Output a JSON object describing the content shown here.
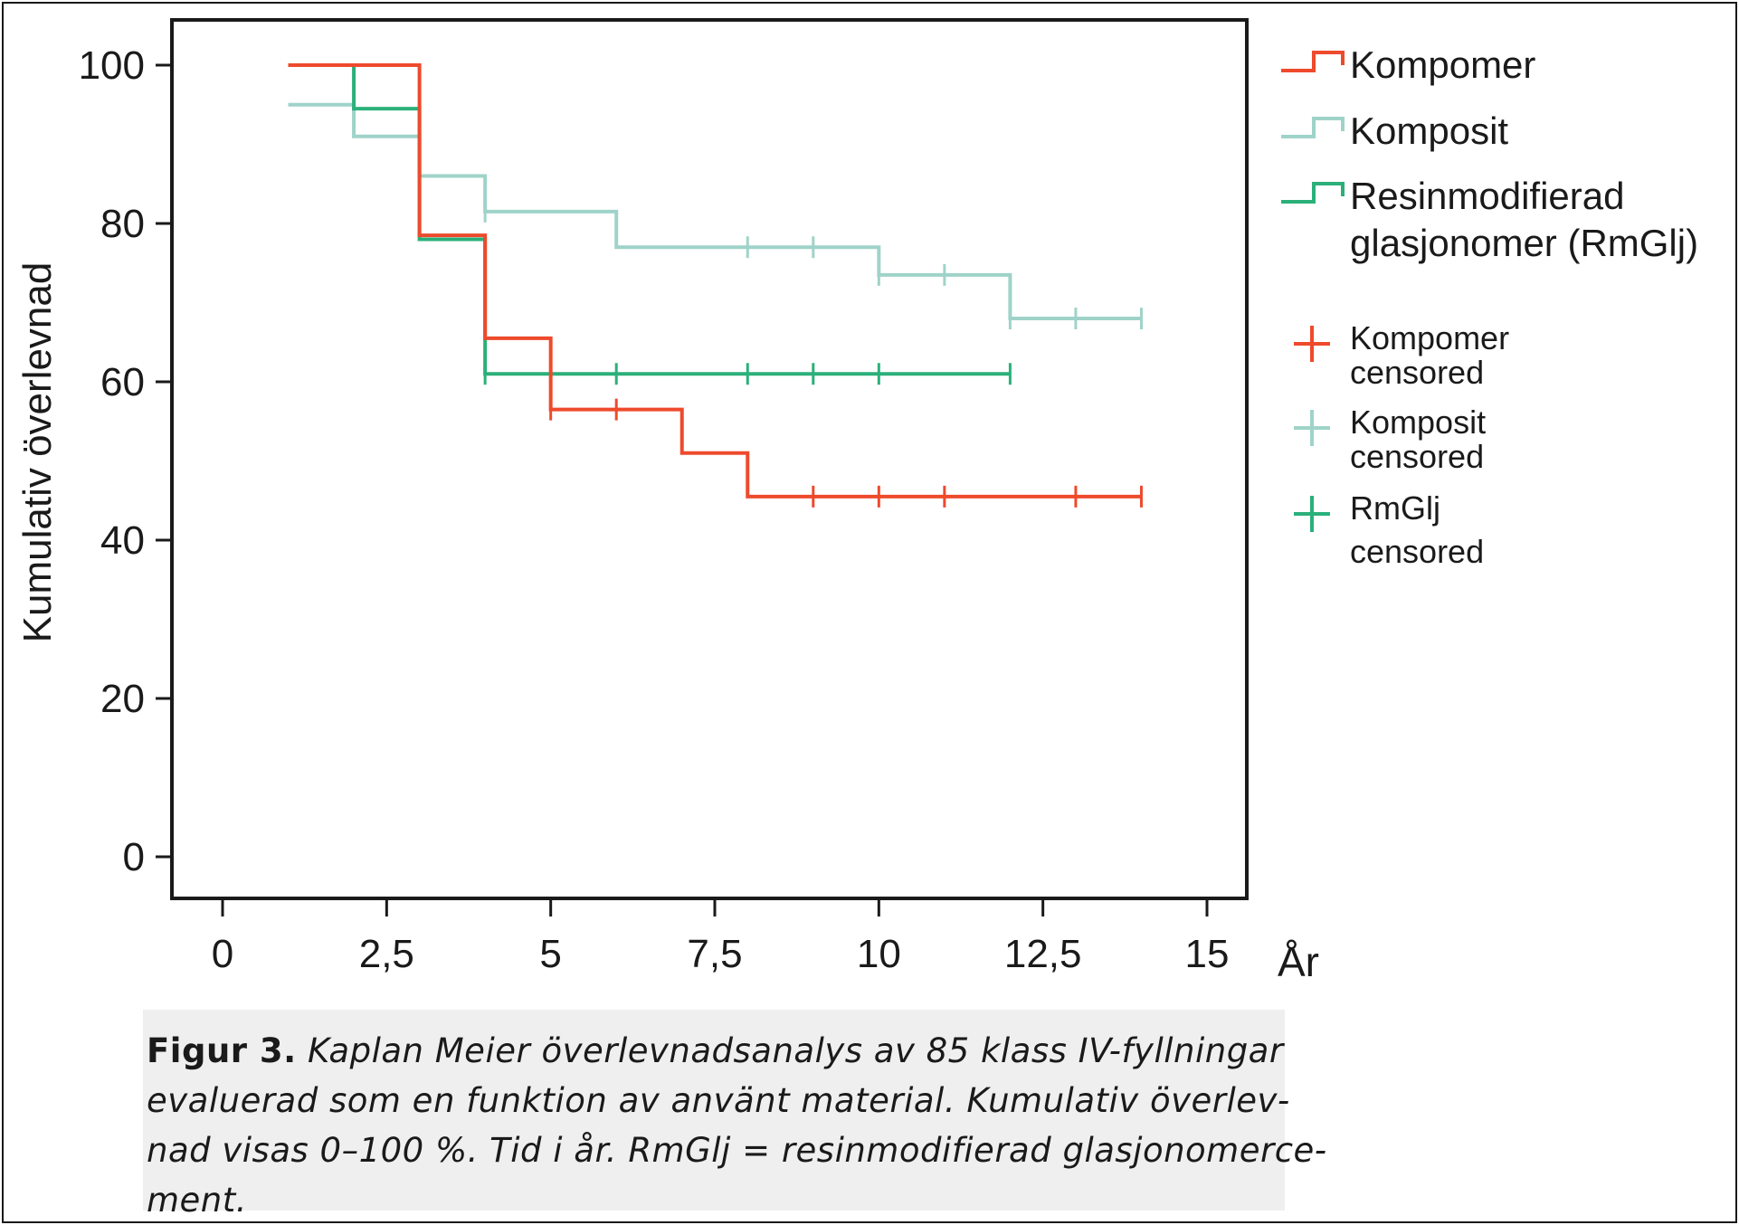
{
  "chart_data": {
    "type": "line",
    "step": true,
    "ylabel": "Kumulativ överlevnad",
    "xunit": "År",
    "xlim": [
      0,
      15
    ],
    "ylim": [
      0,
      100
    ],
    "xticks": [
      0,
      2.5,
      5,
      7.5,
      10,
      12.5,
      15
    ],
    "xtick_labels": [
      "0",
      "2,5",
      "5",
      "7,5",
      "10",
      "12,5",
      "15"
    ],
    "yticks": [
      0,
      20,
      40,
      60,
      80,
      100
    ],
    "ytick_labels": [
      "0",
      "20",
      "40",
      "60",
      "80",
      "100"
    ],
    "grid": false,
    "legend_position": "right",
    "series": [
      {
        "name": "Kompomer",
        "color": "#ee4a2c",
        "points": [
          [
            1,
            100
          ],
          [
            3,
            100
          ],
          [
            3,
            78.5
          ],
          [
            4,
            78.5
          ],
          [
            4,
            65.5
          ],
          [
            5,
            65.5
          ],
          [
            5,
            56.5
          ],
          [
            7,
            56.5
          ],
          [
            7,
            51
          ],
          [
            8,
            51
          ],
          [
            8,
            45.5
          ],
          [
            14,
            45.5
          ]
        ],
        "censored_x": [
          5,
          6,
          9,
          10,
          11,
          13,
          14
        ],
        "censored_label": "Kompomer censored"
      },
      {
        "name": "Komposit",
        "color": "#9fd3c9",
        "points": [
          [
            1,
            95
          ],
          [
            2,
            95
          ],
          [
            2,
            91
          ],
          [
            3,
            91
          ],
          [
            3,
            86
          ],
          [
            4,
            86
          ],
          [
            4,
            81.5
          ],
          [
            6,
            81.5
          ],
          [
            6,
            77
          ],
          [
            10,
            77
          ],
          [
            10,
            73.5
          ],
          [
            12,
            73.5
          ],
          [
            12,
            68
          ],
          [
            14,
            68
          ]
        ],
        "censored_x": [
          4,
          8,
          9,
          10,
          11,
          12,
          13,
          14
        ],
        "censored_label": "Komposit censored"
      },
      {
        "name": "Resinmodifierad glasjonomer (RmGlj)",
        "legend_lines": [
          "Resinmodifierad",
          "glasjonomer (RmGlj)"
        ],
        "color": "#2bb07a",
        "points": [
          [
            1,
            100
          ],
          [
            2,
            100
          ],
          [
            2,
            94.5
          ],
          [
            3,
            94.5
          ],
          [
            3,
            78
          ],
          [
            4,
            78
          ],
          [
            4,
            61
          ],
          [
            12,
            61
          ]
        ],
        "censored_x": [
          4,
          6,
          8,
          9,
          10,
          12
        ],
        "censored_label": "RmGlj censored",
        "censored_legend_lines": [
          "RmGlj",
          "censored"
        ]
      }
    ],
    "censored_legend": [
      {
        "lines": [
          "Kompomer",
          "censored"
        ],
        "color": "#ee4a2c"
      },
      {
        "lines": [
          "Komposit",
          "censored"
        ],
        "color": "#9fd3c9"
      },
      {
        "lines": [
          "RmGlj",
          "censored"
        ],
        "color": "#2bb07a"
      }
    ]
  },
  "caption": {
    "label": "Figur 3.",
    "lines": [
      "Kaplan Meier överlevnadsanalys av 85 klass IV-fyllningar",
      "evaluerad som en funktion av använt material. Kumulativ överlev-",
      "nad visas 0–100 %. Tid i år. RmGlj = resinmodifierad glasjonomerce-",
      "ment."
    ]
  }
}
